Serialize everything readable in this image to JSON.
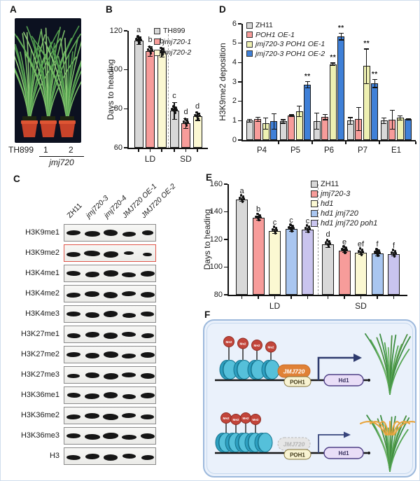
{
  "figure": {
    "panels": {
      "a": {
        "label": "A",
        "caption_wt": "TH899",
        "caption_line1": "1",
        "caption_line2": "2",
        "caption_gene": "jmj720"
      },
      "b": {
        "label": "B"
      },
      "c": {
        "label": "C",
        "lanes": [
          {
            "name": "ZH11",
            "italic": false
          },
          {
            "name": "jmj720-3",
            "italic": true
          },
          {
            "name": "jmj720-4",
            "italic": true
          },
          {
            "name": "JMJ720 OE-1",
            "italic": true
          },
          {
            "name": "JMJ720 OE-2",
            "italic": true
          }
        ],
        "rows": [
          {
            "name": "H3K9me1",
            "highlight": false,
            "band_scale": [
              1,
              1.1,
              1,
              0.95,
              0.8
            ]
          },
          {
            "name": "H3K9me2",
            "highlight": true,
            "band_scale": [
              1,
              1.15,
              1.05,
              0.7,
              0.65
            ]
          },
          {
            "name": "H3K4me1",
            "highlight": false,
            "band_scale": [
              1,
              1,
              1.05,
              1,
              1
            ]
          },
          {
            "name": "H3K4me2",
            "highlight": false,
            "band_scale": [
              1,
              1.05,
              1,
              1,
              1
            ]
          },
          {
            "name": "H3K4me3",
            "highlight": false,
            "band_scale": [
              1,
              1,
              1,
              0.95,
              0.95
            ]
          },
          {
            "name": "H3K27me1",
            "highlight": false,
            "band_scale": [
              0.95,
              1,
              1,
              1,
              0.9
            ]
          },
          {
            "name": "H3K27me2",
            "highlight": false,
            "band_scale": [
              1,
              1,
              1.05,
              1,
              1
            ]
          },
          {
            "name": "H3K27me3",
            "highlight": false,
            "band_scale": [
              0.9,
              1,
              1.05,
              1,
              1
            ]
          },
          {
            "name": "H3K36me1",
            "highlight": false,
            "band_scale": [
              0.95,
              1.05,
              1,
              0.95,
              1
            ]
          },
          {
            "name": "H3K36me2",
            "highlight": false,
            "band_scale": [
              1,
              1.05,
              1.1,
              1,
              0.95
            ]
          },
          {
            "name": "H3K36me3",
            "highlight": false,
            "band_scale": [
              1,
              1.1,
              1.1,
              1.05,
              1
            ]
          },
          {
            "name": "H3",
            "highlight": false,
            "band_scale": [
              1,
              1,
              1,
              0.95,
              0.9
            ]
          }
        ],
        "highlight_color": "#e0564a"
      },
      "d": {
        "label": "D"
      },
      "e": {
        "label": "E"
      },
      "f": {
        "label": "F",
        "me_label": "Me2",
        "jmj720_label": "JMJ720",
        "poh1_label": "POH1",
        "gene_label": "Hd1"
      }
    }
  },
  "chart_data": [
    {
      "id": "B",
      "type": "bar",
      "title": "",
      "xlabel": "",
      "ylabel": "Days to heading",
      "ylim": [
        60,
        120
      ],
      "yticks": [
        60,
        80,
        100,
        120
      ],
      "categories": [
        "LD",
        "SD"
      ],
      "series": [
        {
          "name": "TH899",
          "italic": false,
          "color": "#d8d8d8",
          "values": [
            115,
            79
          ],
          "errors": [
            2,
            4.5
          ],
          "letters": [
            "a",
            "c"
          ]
        },
        {
          "name": "jmj720-1",
          "italic": true,
          "color": "#f79c9a",
          "values": [
            109.5,
            72.5
          ],
          "errors": [
            2.5,
            2.5
          ],
          "letters": [
            "b",
            "d"
          ]
        },
        {
          "name": "jmj720-2",
          "italic": true,
          "color": "#fbf8d2",
          "values": [
            109,
            76
          ],
          "errors": [
            2.5,
            2
          ],
          "letters": [
            "b",
            "d"
          ]
        }
      ],
      "legend_position": "top-right",
      "group_separator": true,
      "dots": true,
      "grid": false
    },
    {
      "id": "D",
      "type": "bar",
      "title": "",
      "xlabel": "",
      "ylabel": "H3K9me2  deposition",
      "ylim": [
        0,
        6
      ],
      "yticks": [
        0,
        1,
        2,
        3,
        4,
        5,
        6
      ],
      "categories": [
        "P4",
        "P5",
        "P6",
        "P7",
        "E1"
      ],
      "series": [
        {
          "name": "ZH11",
          "italic": false,
          "color": "#d8d8d8",
          "values": [
            1.0,
            0.97,
            0.98,
            1.0,
            1.0
          ],
          "errors": [
            0.08,
            0.1,
            0.42,
            0.18,
            0.15
          ]
        },
        {
          "name": "POH1 OE-1",
          "italic": true,
          "color": "#f79c9a",
          "values": [
            1.07,
            1.27,
            1.2,
            1.1,
            1.05
          ],
          "errors": [
            0.12,
            0.05,
            0.15,
            0.6,
            0.5
          ]
        },
        {
          "name": "jmj720-3 POH1 OE-1",
          "italic": true,
          "color": "#eef0b2",
          "values": [
            0.85,
            1.48,
            3.92,
            3.82,
            1.15
          ],
          "errors": [
            0.3,
            0.28,
            0.08,
            0.9,
            0.12
          ],
          "stars": [
            null,
            null,
            "**",
            "**",
            null
          ]
        },
        {
          "name": "jmj720-3 POH1 OE-2",
          "italic": true,
          "color": "#3f80d8",
          "values": [
            0.97,
            2.87,
            5.35,
            2.93,
            1.08
          ],
          "errors": [
            0.4,
            0.18,
            0.18,
            0.22,
            0.05
          ],
          "stars": [
            null,
            "**",
            "**",
            "**",
            null
          ]
        }
      ],
      "legend_position": "top-left",
      "group_separator": false,
      "dots": false,
      "grid": false
    },
    {
      "id": "E",
      "type": "bar",
      "title": "",
      "xlabel": "",
      "ylabel": "Days to heading",
      "ylim": [
        80,
        160
      ],
      "yticks": [
        80,
        100,
        120,
        140,
        160
      ],
      "categories": [
        "LD",
        "SD"
      ],
      "series": [
        {
          "name": "ZH11",
          "italic": false,
          "color": "#d8d8d8",
          "values": [
            149,
            116.5
          ],
          "errors": [
            1.5,
            2.5
          ],
          "letters": [
            "a",
            "d"
          ]
        },
        {
          "name": "jmj720-3",
          "italic": true,
          "color": "#f79c9a",
          "values": [
            135.5,
            112
          ],
          "errors": [
            1.5,
            1.5
          ],
          "letters": [
            "b",
            "e"
          ]
        },
        {
          "name": "hd1",
          "italic": true,
          "color": "#fbf8d2",
          "values": [
            126,
            110.5
          ],
          "errors": [
            1.5,
            1.5
          ],
          "letters": [
            "c",
            "ef"
          ]
        },
        {
          "name": "hd1 jmj720",
          "italic": true,
          "color": "#a9c6f0",
          "values": [
            127.5,
            110
          ],
          "errors": [
            1.5,
            2
          ],
          "letters": [
            "c",
            "f"
          ]
        },
        {
          "name": "hd1 jmj720 poh1",
          "italic": true,
          "color": "#c9c4ee",
          "values": [
            127,
            109.5
          ],
          "errors": [
            1.5,
            1.5
          ],
          "letters": [
            "c",
            "f"
          ]
        }
      ],
      "legend_position": "top-right",
      "group_separator": true,
      "dots": true,
      "grid": false
    }
  ]
}
